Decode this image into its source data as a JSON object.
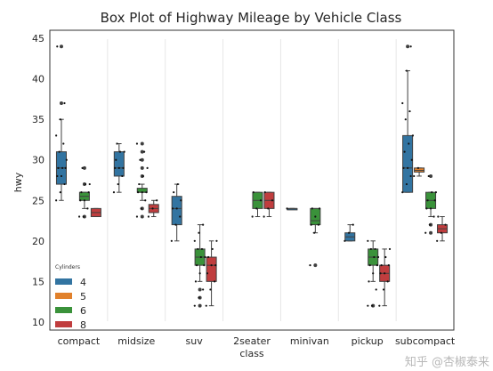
{
  "chart_data": {
    "type": "box",
    "title": "Box Plot of Highway Mileage by Vehicle Class",
    "xlabel": "class",
    "ylabel": "hwy",
    "ylim": [
      9,
      46
    ],
    "yticks": [
      10,
      15,
      20,
      25,
      30,
      35,
      40,
      45
    ],
    "categories": [
      "compact",
      "midsize",
      "suv",
      "2seater",
      "minivan",
      "pickup",
      "subcompact"
    ],
    "grid": "vertical",
    "legend": {
      "title": "Cylinders",
      "placement": "lower-left"
    },
    "series": [
      {
        "name": "4",
        "color": "#3274a1",
        "boxes": [
          {
            "category": "compact",
            "whislo": 25,
            "q1": 27,
            "med": 29,
            "q3": 31,
            "whishi": 35,
            "fliers": [
              37,
              44
            ],
            "points": [
              25,
              26,
              27,
              28,
              28,
              29,
              29,
              29,
              30,
              31,
              32,
              33,
              35,
              37,
              44
            ]
          },
          {
            "category": "midsize",
            "whislo": 26,
            "q1": 28,
            "med": 29,
            "q3": 31,
            "whishi": 32,
            "fliers": [],
            "points": [
              26,
              27,
              28,
              29,
              29,
              29,
              30,
              31,
              31,
              32
            ]
          },
          {
            "category": "suv",
            "whislo": 20,
            "q1": 22,
            "med": 24,
            "q3": 25.5,
            "whishi": 27,
            "fliers": [],
            "points": [
              20,
              22,
              23,
              24,
              24,
              25,
              26,
              27
            ]
          },
          {
            "category": "minivan",
            "whislo": 24,
            "q1": 24,
            "med": 24,
            "q3": 24,
            "whishi": 24,
            "fliers": [],
            "points": [
              24
            ]
          },
          {
            "category": "pickup",
            "whislo": 20,
            "q1": 20,
            "med": 20.5,
            "q3": 21,
            "whishi": 22,
            "fliers": [],
            "points": [
              20,
              21,
              22
            ]
          },
          {
            "category": "subcompact",
            "whislo": 26,
            "q1": 26,
            "med": 29,
            "q3": 33,
            "whishi": 41,
            "fliers": [
              44
            ],
            "points": [
              26,
              27,
              28,
              29,
              29,
              30,
              31,
              32,
              33,
              35,
              36,
              37,
              41,
              44
            ]
          }
        ]
      },
      {
        "name": "5",
        "color": "#e1812c",
        "boxes": [
          {
            "category": "subcompact",
            "whislo": 28,
            "q1": 28.5,
            "med": 28.7,
            "q3": 29,
            "whishi": 29,
            "fliers": [],
            "points": [
              28,
              29
            ]
          }
        ]
      },
      {
        "name": "6",
        "color": "#3a923a",
        "boxes": [
          {
            "category": "compact",
            "whislo": 24,
            "q1": 25,
            "med": 25.5,
            "q3": 26,
            "whishi": 26,
            "fliers": [
              23,
              27,
              29
            ],
            "points": [
              23,
              23,
              24,
              25,
              25,
              26,
              26,
              27,
              27,
              29
            ]
          },
          {
            "category": "midsize",
            "whislo": 25,
            "q1": 26,
            "med": 26,
            "q3": 26.5,
            "whishi": 27,
            "fliers": [
              23,
              24,
              28,
              29,
              30,
              31,
              32
            ],
            "points": [
              23,
              24,
              25,
              26,
              26,
              26,
              27,
              28,
              29,
              30,
              31,
              32
            ]
          },
          {
            "category": "suv",
            "whislo": 15,
            "q1": 17,
            "med": 18,
            "q3": 19,
            "whishi": 22,
            "fliers": [
              12,
              13,
              14
            ],
            "points": [
              12,
              13,
              14,
              15,
              16,
              17,
              17,
              18,
              18,
              19,
              19,
              20,
              21,
              22
            ]
          },
          {
            "category": "2seater",
            "whislo": 23,
            "q1": 24,
            "med": 25,
            "q3": 26,
            "whishi": 26,
            "fliers": [],
            "points": [
              23,
              24,
              25,
              26
            ]
          },
          {
            "category": "minivan",
            "whislo": 21,
            "q1": 22,
            "med": 22.5,
            "q3": 24,
            "whishi": 24,
            "fliers": [
              17
            ],
            "points": [
              17,
              21,
              22,
              22,
              23,
              24,
              24
            ]
          },
          {
            "category": "pickup",
            "whislo": 15,
            "q1": 17,
            "med": 18,
            "q3": 19,
            "whishi": 20,
            "fliers": [
              12
            ],
            "points": [
              12,
              12,
              14,
              15,
              16,
              17,
              17,
              18,
              18,
              19,
              19,
              20
            ]
          },
          {
            "category": "subcompact",
            "whislo": 23,
            "q1": 24,
            "med": 25,
            "q3": 26,
            "whishi": 26,
            "fliers": [
              21,
              22,
              28
            ],
            "points": [
              21,
              22,
              23,
              24,
              24,
              25,
              25,
              26,
              26,
              28
            ]
          }
        ]
      },
      {
        "name": "8",
        "color": "#c03d3e",
        "boxes": [
          {
            "category": "compact",
            "whislo": 23,
            "q1": 23,
            "med": 23.5,
            "q3": 24,
            "whishi": 24,
            "fliers": [],
            "points": []
          },
          {
            "category": "midsize",
            "whislo": 23,
            "q1": 23.5,
            "med": 24,
            "q3": 24.5,
            "whishi": 25,
            "fliers": [],
            "points": [
              23,
              24,
              25
            ]
          },
          {
            "category": "suv",
            "whislo": 12,
            "q1": 15,
            "med": 17,
            "q3": 18,
            "whishi": 20,
            "fliers": [],
            "points": [
              12,
              14,
              15,
              16,
              17,
              17,
              18,
              19,
              20
            ]
          },
          {
            "category": "2seater",
            "whislo": 23,
            "q1": 24,
            "med": 25,
            "q3": 26,
            "whishi": 26,
            "fliers": [],
            "points": [
              23,
              24,
              25,
              26
            ]
          },
          {
            "category": "pickup",
            "whislo": 12,
            "q1": 15,
            "med": 16,
            "q3": 17,
            "whishi": 19,
            "fliers": [],
            "points": [
              12,
              14,
              15,
              16,
              16,
              17,
              17,
              18,
              19
            ]
          },
          {
            "category": "subcompact",
            "whislo": 20,
            "q1": 21,
            "med": 21.5,
            "q3": 22,
            "whishi": 23,
            "fliers": [],
            "points": [
              20,
              21,
              22,
              23
            ]
          }
        ]
      }
    ]
  },
  "watermark": "知乎 @杏椒泰来"
}
